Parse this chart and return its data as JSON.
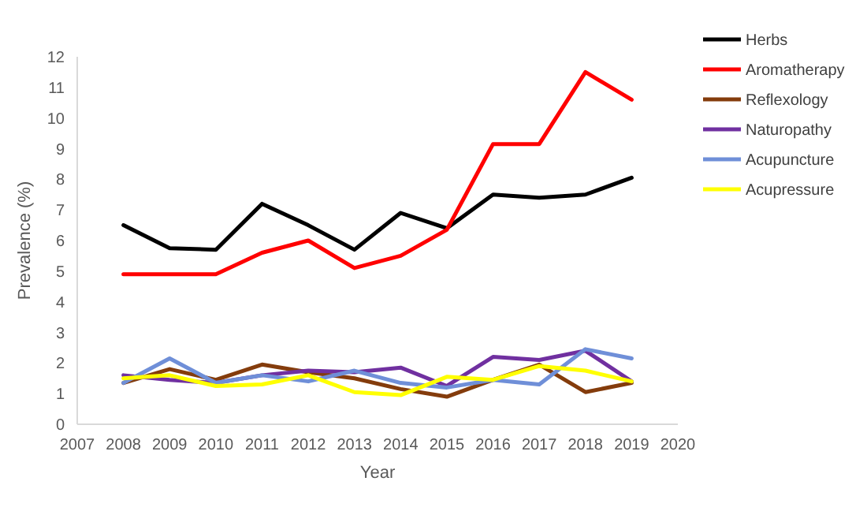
{
  "chart_data": {
    "type": "line",
    "xlabel": "Year",
    "ylabel": "Prevalence (%)",
    "x": [
      2008,
      2009,
      2010,
      2011,
      2012,
      2013,
      2014,
      2015,
      2016,
      2017,
      2018,
      2019
    ],
    "xlim": [
      2007,
      2020
    ],
    "xticks": [
      2007,
      2008,
      2009,
      2010,
      2011,
      2012,
      2013,
      2014,
      2015,
      2016,
      2017,
      2018,
      2019,
      2020
    ],
    "ylim": [
      0,
      12
    ],
    "yticks": [
      0,
      1,
      2,
      3,
      4,
      5,
      6,
      7,
      8,
      9,
      10,
      11,
      12
    ],
    "grid": false,
    "legend": "right",
    "line_style": "solid",
    "marker": "none",
    "series": [
      {
        "name": "Herbs",
        "color": "#000000",
        "values": [
          6.5,
          5.75,
          5.7,
          7.2,
          6.5,
          5.7,
          6.9,
          6.4,
          7.5,
          7.4,
          7.5,
          8.05
        ]
      },
      {
        "name": "Aromatherapy",
        "color": "#ff0000",
        "values": [
          4.9,
          4.9,
          4.9,
          5.6,
          6.0,
          5.1,
          5.5,
          6.35,
          9.15,
          9.15,
          11.5,
          10.6
        ]
      },
      {
        "name": "Reflexology",
        "color": "#843c0c",
        "values": [
          1.35,
          1.8,
          1.45,
          1.95,
          1.7,
          1.5,
          1.15,
          0.9,
          1.45,
          1.95,
          1.05,
          1.35
        ]
      },
      {
        "name": "Naturopathy",
        "color": "#7030a0",
        "values": [
          1.6,
          1.45,
          1.35,
          1.6,
          1.75,
          1.7,
          1.85,
          1.25,
          2.2,
          2.1,
          2.4,
          1.4
        ]
      },
      {
        "name": "Acupuncture",
        "color": "#6f8fd8",
        "values": [
          1.35,
          2.15,
          1.35,
          1.6,
          1.4,
          1.75,
          1.35,
          1.2,
          1.45,
          1.3,
          2.45,
          2.15
        ]
      },
      {
        "name": "Acupressure",
        "color": "#ffff00",
        "values": [
          1.5,
          1.6,
          1.25,
          1.3,
          1.6,
          1.05,
          0.95,
          1.55,
          1.45,
          1.9,
          1.75,
          1.4
        ]
      }
    ]
  }
}
